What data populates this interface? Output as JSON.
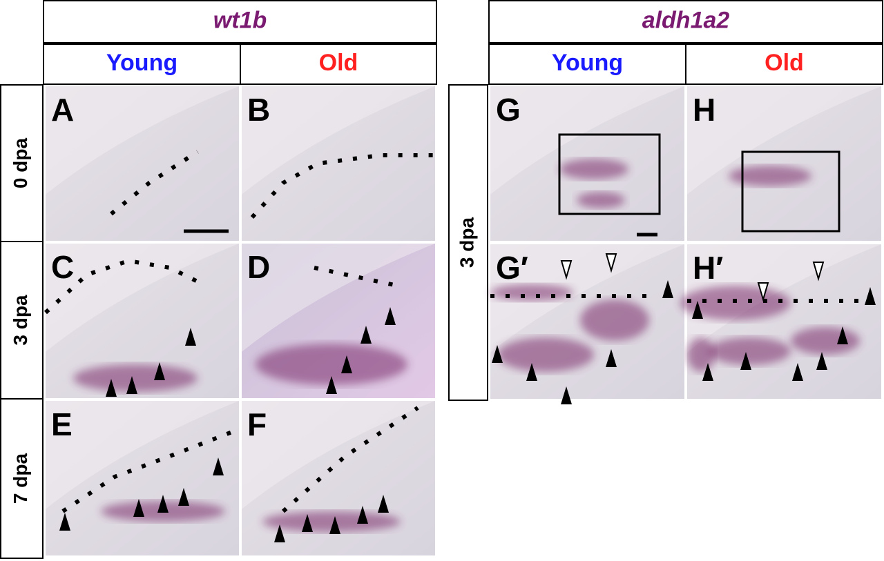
{
  "left": {
    "gene": "wt1b",
    "columns": [
      "Young",
      "Old"
    ],
    "rows": [
      {
        "label": "0 dpa",
        "panels": [
          "A",
          "B"
        ]
      },
      {
        "label": "3 dpa",
        "panels": [
          "C",
          "D"
        ]
      },
      {
        "label": "7 dpa",
        "panels": [
          "E",
          "F"
        ]
      }
    ]
  },
  "right": {
    "gene": "aldh1a2",
    "columns": [
      "Young",
      "Old"
    ],
    "rows": [
      {
        "label": "3 dpa",
        "panels": [
          "G",
          "H",
          "G′",
          "H′"
        ]
      }
    ]
  }
}
